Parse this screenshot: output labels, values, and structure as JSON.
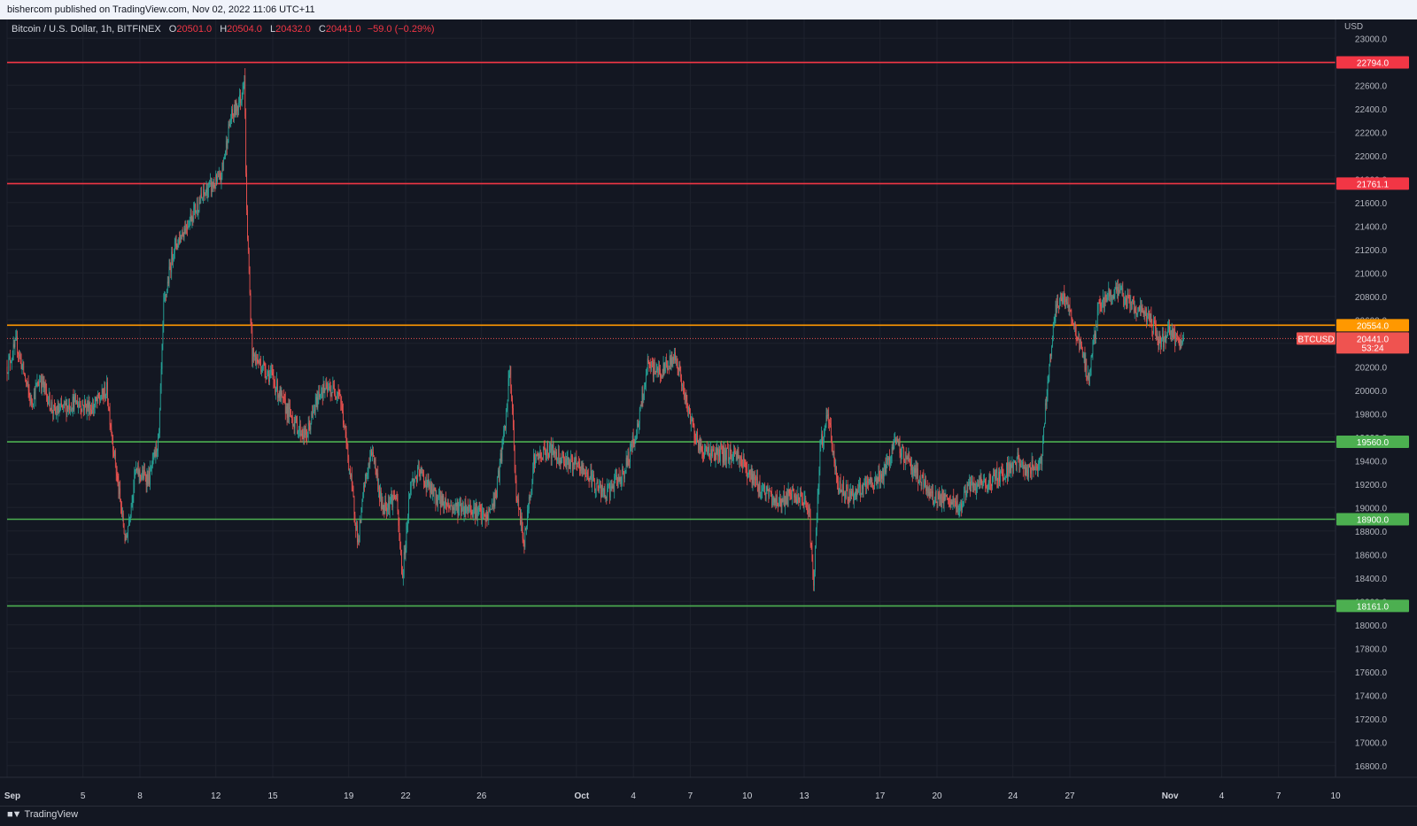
{
  "header": {
    "published": "bishercom published on TradingView.com, Nov 02, 2022 11:06 UTC+11"
  },
  "legend": {
    "symbol": "Bitcoin / U.S. Dollar, 1h, BITFINEX",
    "o_label": "O",
    "o_value": "20501.0",
    "h_label": "H",
    "h_value": "20504.0",
    "l_label": "L",
    "l_value": "20432.0",
    "c_label": "C",
    "c_value": "20441.0",
    "change": "−59.0 (−0.29%)"
  },
  "footer": {
    "brand": "TradingView"
  },
  "colors": {
    "background": "#131722",
    "grid": "#1e222d",
    "up": "#26a69a",
    "down": "#ef5350",
    "resistance": "#f23645",
    "pivot": "#ff9800",
    "support": "#4caf50"
  },
  "chart_data": {
    "type": "candlestick",
    "symbol": "BTCUSD",
    "timeframe": "1h",
    "exchange": "BITFINEX",
    "currency": "USD",
    "ylim": [
      16700,
      23100
    ],
    "x_range": [
      "2022-09-01",
      "2022-11-10"
    ],
    "y_ticks": [
      16800,
      17000,
      17200,
      17400,
      17600,
      17800,
      18000,
      18200,
      18400,
      18600,
      18800,
      19000,
      19200,
      19400,
      19600,
      19800,
      20000,
      20200,
      20400,
      20600,
      20800,
      21000,
      21200,
      21400,
      21600,
      21800,
      22000,
      22200,
      22400,
      22600,
      22800,
      23000
    ],
    "y_tick_labels": [
      "16800.0",
      "17000.0",
      "17200.0",
      "17400.0",
      "17600.0",
      "17800.0",
      "18000.0",
      "18200.0",
      "18400.0",
      "18600.0",
      "18800.0",
      "19000.0",
      "19200.0",
      "19400.0",
      "19600.0",
      "19800.0",
      "20000.0",
      "20200.0",
      "20400.0",
      "20600.0",
      "20800.0",
      "21000.0",
      "21200.0",
      "21400.0",
      "21600.0",
      "21800.0",
      "22000.0",
      "22200.0",
      "22400.0",
      "22600.0",
      "22800.0",
      "23000.0"
    ],
    "x_ticks": [
      {
        "date": "2022-09-01",
        "label": "Sep",
        "bold": true
      },
      {
        "date": "2022-09-05",
        "label": "5"
      },
      {
        "date": "2022-09-08",
        "label": "8"
      },
      {
        "date": "2022-09-12",
        "label": "12"
      },
      {
        "date": "2022-09-15",
        "label": "15"
      },
      {
        "date": "2022-09-19",
        "label": "19"
      },
      {
        "date": "2022-09-22",
        "label": "22"
      },
      {
        "date": "2022-09-26",
        "label": "26"
      },
      {
        "date": "2022-10-01",
        "label": "Oct",
        "bold": true
      },
      {
        "date": "2022-10-04",
        "label": "4"
      },
      {
        "date": "2022-10-07",
        "label": "7"
      },
      {
        "date": "2022-10-10",
        "label": "10"
      },
      {
        "date": "2022-10-13",
        "label": "13"
      },
      {
        "date": "2022-10-17",
        "label": "17"
      },
      {
        "date": "2022-10-20",
        "label": "20"
      },
      {
        "date": "2022-10-24",
        "label": "24"
      },
      {
        "date": "2022-10-27",
        "label": "27"
      },
      {
        "date": "2022-11-01",
        "label": "Nov",
        "bold": true
      },
      {
        "date": "2022-11-04",
        "label": "4"
      },
      {
        "date": "2022-11-07",
        "label": "7"
      },
      {
        "date": "2022-11-10",
        "label": "10"
      }
    ],
    "horizontal_levels": [
      {
        "price": 22794.0,
        "label": "22794.0",
        "color": "#f23645"
      },
      {
        "price": 21761.1,
        "label": "21761.1",
        "color": "#f23645"
      },
      {
        "price": 20554.0,
        "label": "20554.0",
        "color": "#ff9800"
      },
      {
        "price": 19560.0,
        "label": "19560.0",
        "color": "#4caf50"
      },
      {
        "price": 18900.0,
        "label": "18900.0",
        "color": "#4caf50"
      },
      {
        "price": 18161.0,
        "label": "18161.0",
        "color": "#4caf50"
      }
    ],
    "last_price": {
      "price": 20441.0,
      "label": "20441.0",
      "symbol_tag": "BTCUSD",
      "countdown": "53:24"
    },
    "axis_unit": "USD",
    "price_path": [
      {
        "t": "2022-09-01T00:00",
        "p": 20200
      },
      {
        "t": "2022-09-01T12:00",
        "p": 20400
      },
      {
        "t": "2022-09-02T06:00",
        "p": 19900
      },
      {
        "t": "2022-09-02T18:00",
        "p": 20100
      },
      {
        "t": "2022-09-03T12:00",
        "p": 19800
      },
      {
        "t": "2022-09-04T12:00",
        "p": 19900
      },
      {
        "t": "2022-09-05T12:00",
        "p": 19850
      },
      {
        "t": "2022-09-06T06:00",
        "p": 20000
      },
      {
        "t": "2022-09-06T20:00",
        "p": 19200
      },
      {
        "t": "2022-09-07T06:00",
        "p": 18700
      },
      {
        "t": "2022-09-07T18:00",
        "p": 19300
      },
      {
        "t": "2022-09-08T12:00",
        "p": 19250
      },
      {
        "t": "2022-09-09T00:00",
        "p": 19600
      },
      {
        "t": "2022-09-09T06:00",
        "p": 20700
      },
      {
        "t": "2022-09-09T18:00",
        "p": 21200
      },
      {
        "t": "2022-09-10T18:00",
        "p": 21500
      },
      {
        "t": "2022-09-11T12:00",
        "p": 21700
      },
      {
        "t": "2022-09-12T06:00",
        "p": 21800
      },
      {
        "t": "2022-09-12T18:00",
        "p": 22300
      },
      {
        "t": "2022-09-13T08:00",
        "p": 22500
      },
      {
        "t": "2022-09-13T12:00",
        "p": 22700
      },
      {
        "t": "2022-09-13T15:00",
        "p": 21500
      },
      {
        "t": "2022-09-13T22:00",
        "p": 20300
      },
      {
        "t": "2022-09-14T12:00",
        "p": 20200
      },
      {
        "t": "2022-09-15T00:00",
        "p": 20100
      },
      {
        "t": "2022-09-15T12:00",
        "p": 19900
      },
      {
        "t": "2022-09-16T06:00",
        "p": 19700
      },
      {
        "t": "2022-09-16T18:00",
        "p": 19600
      },
      {
        "t": "2022-09-17T12:00",
        "p": 20000
      },
      {
        "t": "2022-09-18T12:00",
        "p": 20000
      },
      {
        "t": "2022-09-18T22:00",
        "p": 19500
      },
      {
        "t": "2022-09-19T12:00",
        "p": 18700
      },
      {
        "t": "2022-09-19T20:00",
        "p": 19200
      },
      {
        "t": "2022-09-20T06:00",
        "p": 19500
      },
      {
        "t": "2022-09-20T18:00",
        "p": 19000
      },
      {
        "t": "2022-09-21T12:00",
        "p": 19100
      },
      {
        "t": "2022-09-21T20:00",
        "p": 18400
      },
      {
        "t": "2022-09-22T06:00",
        "p": 19200
      },
      {
        "t": "2022-09-22T18:00",
        "p": 19300
      },
      {
        "t": "2022-09-23T12:00",
        "p": 19100
      },
      {
        "t": "2022-09-24T12:00",
        "p": 19000
      },
      {
        "t": "2022-09-25T12:00",
        "p": 19000
      },
      {
        "t": "2022-09-26T06:00",
        "p": 18900
      },
      {
        "t": "2022-09-26T18:00",
        "p": 19100
      },
      {
        "t": "2022-09-27T06:00",
        "p": 19700
      },
      {
        "t": "2022-09-27T12:00",
        "p": 20200
      },
      {
        "t": "2022-09-27T20:00",
        "p": 19100
      },
      {
        "t": "2022-09-28T06:00",
        "p": 18700
      },
      {
        "t": "2022-09-28T18:00",
        "p": 19400
      },
      {
        "t": "2022-09-29T12:00",
        "p": 19500
      },
      {
        "t": "2022-09-30T12:00",
        "p": 19400
      },
      {
        "t": "2022-10-01T12:00",
        "p": 19300
      },
      {
        "t": "2022-10-02T12:00",
        "p": 19100
      },
      {
        "t": "2022-10-03T12:00",
        "p": 19300
      },
      {
        "t": "2022-10-04T06:00",
        "p": 19700
      },
      {
        "t": "2022-10-04T18:00",
        "p": 20200
      },
      {
        "t": "2022-10-05T12:00",
        "p": 20150
      },
      {
        "t": "2022-10-06T06:00",
        "p": 20300
      },
      {
        "t": "2022-10-06T18:00",
        "p": 19900
      },
      {
        "t": "2022-10-07T12:00",
        "p": 19500
      },
      {
        "t": "2022-10-08T12:00",
        "p": 19450
      },
      {
        "t": "2022-10-09T12:00",
        "p": 19450
      },
      {
        "t": "2022-10-10T12:00",
        "p": 19200
      },
      {
        "t": "2022-10-11T12:00",
        "p": 19050
      },
      {
        "t": "2022-10-12T12:00",
        "p": 19100
      },
      {
        "t": "2022-10-13T06:00",
        "p": 19000
      },
      {
        "t": "2022-10-13T12:00",
        "p": 18300
      },
      {
        "t": "2022-10-13T20:00",
        "p": 19500
      },
      {
        "t": "2022-10-14T06:00",
        "p": 19800
      },
      {
        "t": "2022-10-14T18:00",
        "p": 19200
      },
      {
        "t": "2022-10-15T12:00",
        "p": 19100
      },
      {
        "t": "2022-10-16T12:00",
        "p": 19200
      },
      {
        "t": "2022-10-17T06:00",
        "p": 19300
      },
      {
        "t": "2022-10-17T18:00",
        "p": 19550
      },
      {
        "t": "2022-10-18T12:00",
        "p": 19400
      },
      {
        "t": "2022-10-19T06:00",
        "p": 19200
      },
      {
        "t": "2022-10-19T18:00",
        "p": 19100
      },
      {
        "t": "2022-10-20T12:00",
        "p": 19050
      },
      {
        "t": "2022-10-21T06:00",
        "p": 19000
      },
      {
        "t": "2022-10-21T12:00",
        "p": 19150
      },
      {
        "t": "2022-10-22T12:00",
        "p": 19200
      },
      {
        "t": "2022-10-23T12:00",
        "p": 19300
      },
      {
        "t": "2022-10-24T06:00",
        "p": 19400
      },
      {
        "t": "2022-10-24T18:00",
        "p": 19300
      },
      {
        "t": "2022-10-25T12:00",
        "p": 19400
      },
      {
        "t": "2022-10-25T20:00",
        "p": 20100
      },
      {
        "t": "2022-10-26T06:00",
        "p": 20700
      },
      {
        "t": "2022-10-26T18:00",
        "p": 20800
      },
      {
        "t": "2022-10-27T12:00",
        "p": 20400
      },
      {
        "t": "2022-10-28T00:00",
        "p": 20100
      },
      {
        "t": "2022-10-28T12:00",
        "p": 20700
      },
      {
        "t": "2022-10-29T06:00",
        "p": 20850
      },
      {
        "t": "2022-10-29T18:00",
        "p": 20800
      },
      {
        "t": "2022-10-30T12:00",
        "p": 20700
      },
      {
        "t": "2022-10-31T06:00",
        "p": 20600
      },
      {
        "t": "2022-10-31T18:00",
        "p": 20400
      },
      {
        "t": "2022-11-01T06:00",
        "p": 20500
      },
      {
        "t": "2022-11-01T18:00",
        "p": 20400
      },
      {
        "t": "2022-11-02T00:00",
        "p": 20441
      }
    ]
  }
}
